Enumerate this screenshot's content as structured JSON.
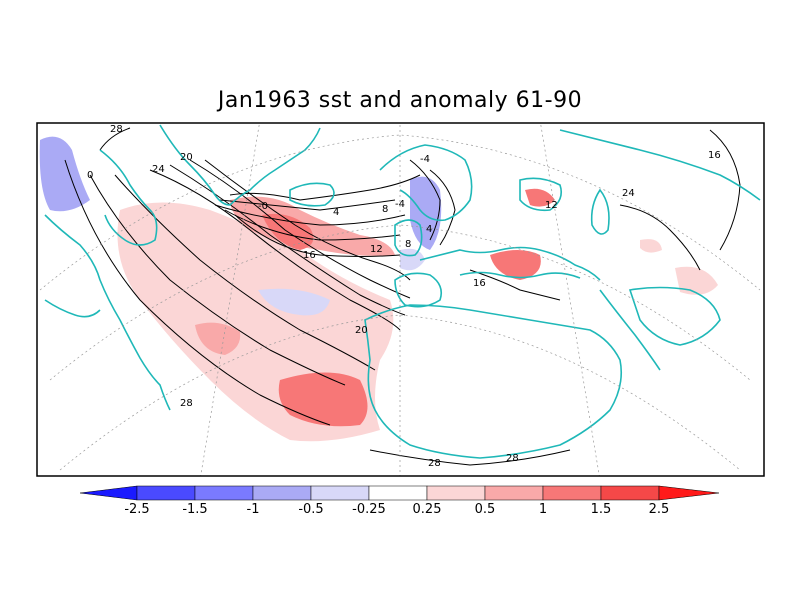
{
  "title": "Jan1963 sst and anomaly 61-90",
  "contour_labels": [
    "28",
    "24",
    "20",
    "0",
    "-0",
    "4",
    "8",
    "-4",
    "12",
    "16",
    "16",
    "20",
    "28",
    "28",
    "28",
    "24",
    "12",
    "-4",
    "8",
    "4",
    "16"
  ],
  "colorbar": {
    "labels": [
      "-2.5",
      "-1.5",
      "-1",
      "-0.5",
      "-0.25",
      "0.25",
      "0.5",
      "1",
      "1.5",
      "2.5"
    ],
    "colors": [
      "#1a1aff",
      "#4a4aff",
      "#7a7aff",
      "#aaaaf5",
      "#d8d8f8",
      "#ffffff",
      "#fbd6d6",
      "#f9a9a9",
      "#f77777",
      "#f54848",
      "#ff1a1a"
    ]
  },
  "colors": {
    "coastline": "#1fb8b8",
    "contour": "#000000",
    "frame": "#000000"
  }
}
